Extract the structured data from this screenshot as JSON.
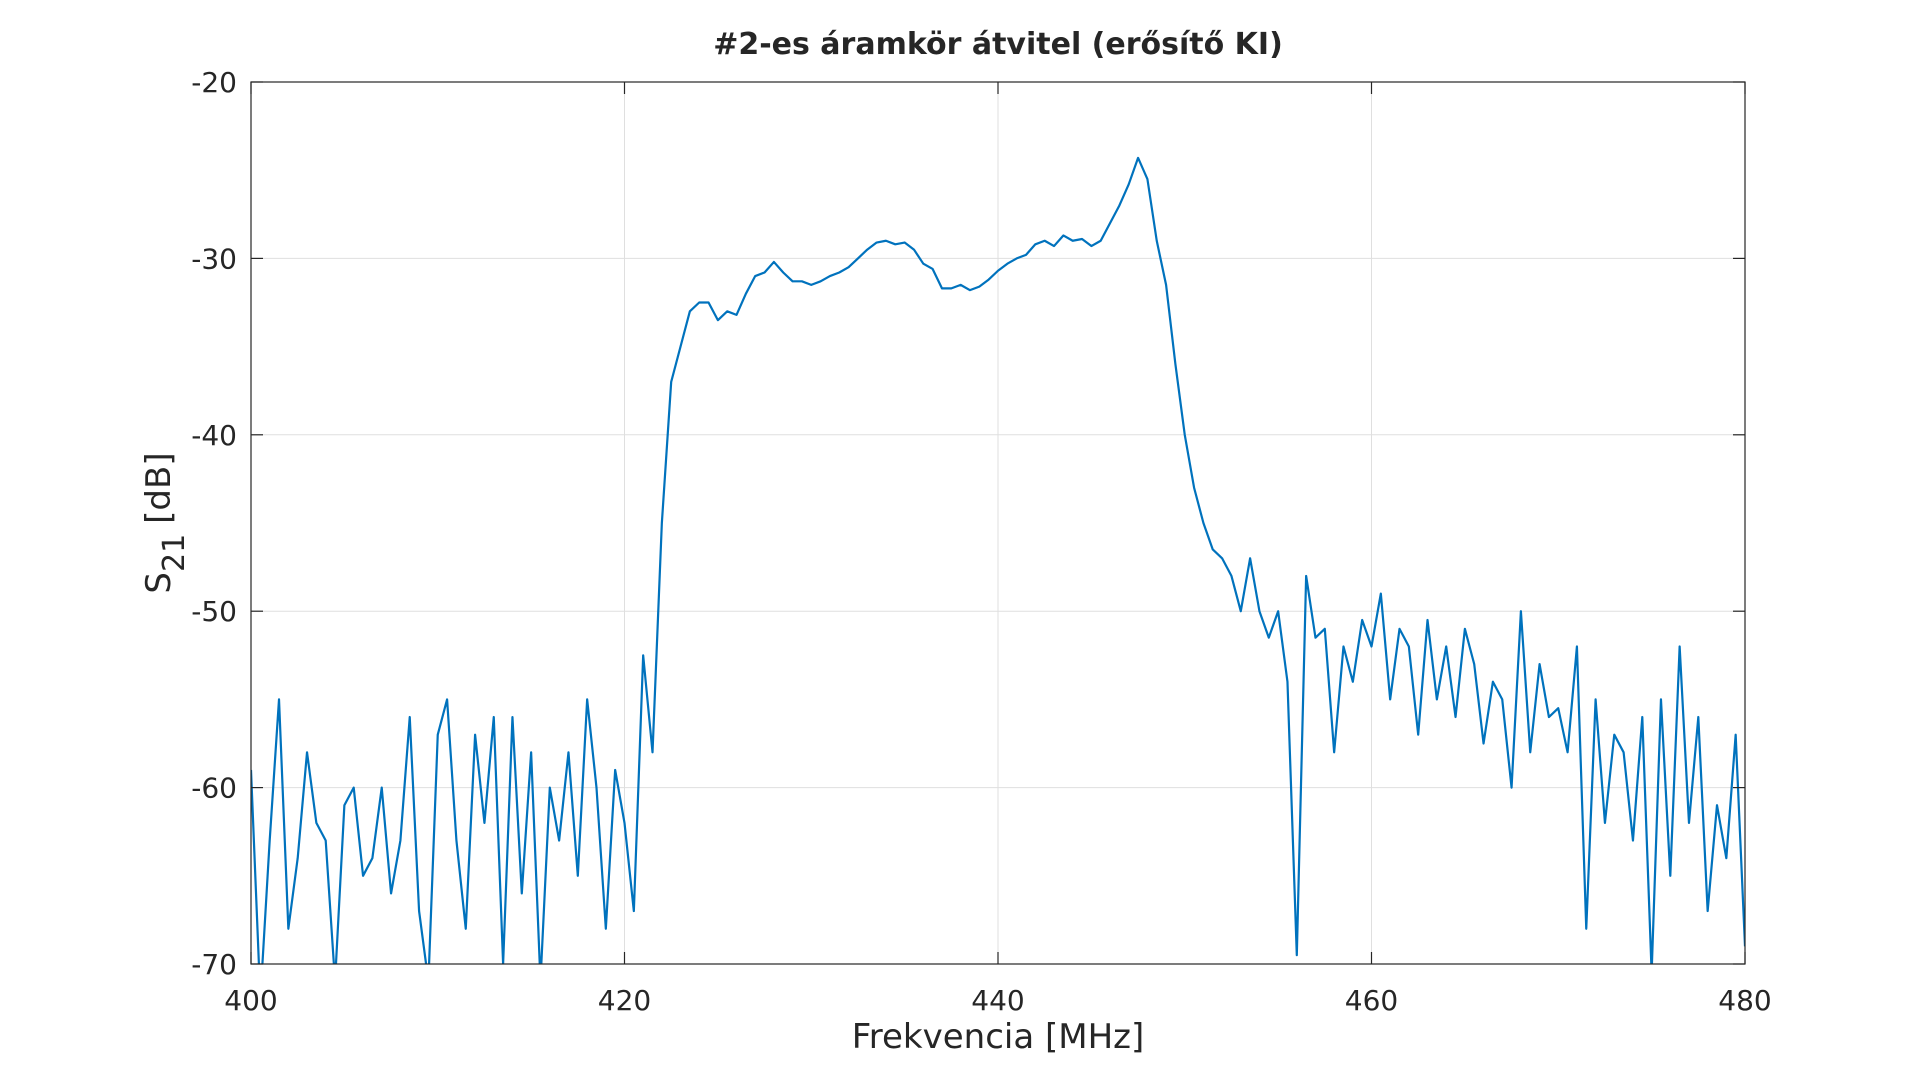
{
  "chart_data": {
    "type": "line",
    "title": "#2-es áramkör átvitel (erősítő KI)",
    "xlabel": "Frekvencia [MHz]",
    "ylabel": {
      "base": "S",
      "sub": "21",
      "unit": "[dB]"
    },
    "x": [
      400,
      400.5,
      401,
      401.5,
      402,
      402.5,
      403,
      403.5,
      404,
      404.5,
      405,
      405.5,
      406,
      406.5,
      407,
      407.5,
      408,
      408.5,
      409,
      409.5,
      410,
      410.5,
      411,
      411.5,
      412,
      412.5,
      413,
      413.5,
      414,
      414.5,
      415,
      415.5,
      416,
      416.5,
      417,
      417.5,
      418,
      418.5,
      419,
      419.5,
      420,
      420.5,
      421,
      421.5,
      422,
      422.5,
      423,
      423.5,
      424,
      424.5,
      425,
      425.5,
      426,
      426.5,
      427,
      427.5,
      428,
      428.5,
      429,
      429.5,
      430,
      430.5,
      431,
      431.5,
      432,
      432.5,
      433,
      433.5,
      434,
      434.5,
      435,
      435.5,
      436,
      436.5,
      437,
      437.5,
      438,
      438.5,
      439,
      439.5,
      440,
      440.5,
      441,
      441.5,
      442,
      442.5,
      443,
      443.5,
      444,
      444.5,
      445,
      445.5,
      446,
      446.5,
      447,
      447.5,
      448,
      448.5,
      449,
      449.5,
      450,
      450.5,
      451,
      451.5,
      452,
      452.5,
      453,
      453.5,
      454,
      454.5,
      455,
      455.5,
      456,
      456.5,
      457,
      457.5,
      458,
      458.5,
      459,
      459.5,
      460,
      460.5,
      461,
      461.5,
      462,
      462.5,
      463,
      463.5,
      464,
      464.5,
      465,
      465.5,
      466,
      466.5,
      467,
      467.5,
      468,
      468.5,
      469,
      469.5,
      470,
      470.5,
      471,
      471.5,
      472,
      472.5,
      473,
      473.5,
      474,
      474.5,
      475,
      475.5,
      476,
      476.5,
      477,
      477.5,
      478,
      478.5,
      479,
      479.5,
      480
    ],
    "values": [
      -59,
      -72,
      -63,
      -55,
      -68,
      -64,
      -58,
      -62,
      -63,
      -71,
      -61,
      -60,
      -65,
      -64,
      -60,
      -66,
      -63,
      -56,
      -67,
      -71,
      -57,
      -55,
      -63,
      -68,
      -57,
      -62,
      -56,
      -70,
      -56,
      -66,
      -58,
      -71,
      -60,
      -63,
      -58,
      -65,
      -55,
      -60,
      -68,
      -59,
      -62,
      -67,
      -52.5,
      -58,
      -45,
      -37,
      -35,
      -33,
      -32.5,
      -32.5,
      -33.5,
      -33,
      -33.2,
      -32,
      -31,
      -30.8,
      -30.2,
      -30.8,
      -31.3,
      -31.3,
      -31.5,
      -31.3,
      -31,
      -30.8,
      -30.5,
      -30,
      -29.5,
      -29.1,
      -29,
      -29.2,
      -29.1,
      -29.5,
      -30.3,
      -30.6,
      -31.7,
      -31.7,
      -31.5,
      -31.8,
      -31.6,
      -31.2,
      -30.7,
      -30.3,
      -30,
      -29.8,
      -29.2,
      -29,
      -29.3,
      -28.7,
      -29,
      -28.9,
      -29.3,
      -29,
      -28,
      -27,
      -25.8,
      -24.3,
      -25.5,
      -29,
      -31.5,
      -36,
      -40,
      -43,
      -45,
      -46.5,
      -47,
      -48,
      -50,
      -47,
      -50,
      -51.5,
      -50,
      -54,
      -69.5,
      -48,
      -51.5,
      -51,
      -58,
      -52,
      -54,
      -50.5,
      -52,
      -49,
      -55,
      -51,
      -52,
      -57,
      -50.5,
      -55,
      -52,
      -56,
      -51,
      -53,
      -57.5,
      -54,
      -55,
      -60,
      -50,
      -58,
      -53,
      -56,
      -55.5,
      -58,
      -52,
      -68,
      -55,
      -62,
      -57,
      -58,
      -63,
      -56,
      -70.5,
      -55,
      -65,
      -52,
      -62,
      -56,
      -67,
      -61,
      -64,
      -57,
      -69
    ],
    "color": "#0072bd",
    "xlim": [
      400,
      480
    ],
    "xticks": [
      400,
      420,
      440,
      460,
      480
    ],
    "ylim": [
      -70,
      -20
    ],
    "yticks": [
      -70,
      -60,
      -50,
      -40,
      -30,
      -20
    ],
    "grid": true
  }
}
